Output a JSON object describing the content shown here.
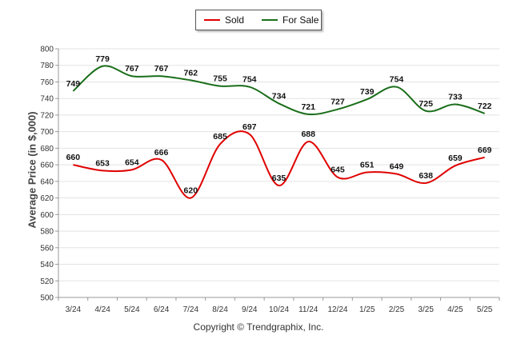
{
  "chart_data": {
    "type": "line",
    "categories": [
      "3/24",
      "4/24",
      "5/24",
      "6/24",
      "7/24",
      "8/24",
      "9/24",
      "10/24",
      "11/24",
      "12/24",
      "1/25",
      "2/25",
      "3/25",
      "4/25",
      "5/25"
    ],
    "series": [
      {
        "name": "Sold",
        "color": "#e00000",
        "values": [
          660,
          653,
          654,
          666,
          620,
          685,
          697,
          635,
          688,
          645,
          651,
          649,
          638,
          659,
          669
        ]
      },
      {
        "name": "For Sale",
        "color": "#1a6e1a",
        "values": [
          749,
          779,
          767,
          767,
          762,
          755,
          754,
          734,
          721,
          727,
          739,
          754,
          725,
          733,
          722
        ]
      }
    ],
    "ylabel": "Average Price (in $,000)",
    "xlabel": "",
    "ylim": [
      500,
      800
    ],
    "yticks": [
      500,
      520,
      540,
      560,
      580,
      600,
      620,
      640,
      660,
      680,
      700,
      720,
      740,
      760,
      780,
      800
    ],
    "grid": true,
    "legend_position": "top-center"
  },
  "footer": {
    "copyright": "Copyright © Trendgraphix, Inc."
  }
}
